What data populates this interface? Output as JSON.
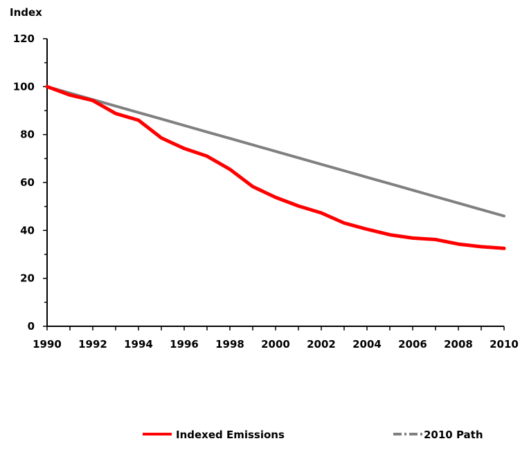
{
  "chart_data": {
    "type": "line",
    "ylabel": "Index",
    "xlabel": "",
    "x": [
      1990,
      1991,
      1992,
      1993,
      1994,
      1995,
      1996,
      1997,
      1998,
      1999,
      2000,
      2001,
      2002,
      2003,
      2004,
      2005,
      2006,
      2007,
      2008,
      2009,
      2010
    ],
    "x_ticks": [
      "1990",
      "1992",
      "1994",
      "1996",
      "1998",
      "2000",
      "2002",
      "2004",
      "2006",
      "2008",
      "2010"
    ],
    "y_ticks": [
      "0",
      "20",
      "40",
      "60",
      "80",
      "100",
      "120"
    ],
    "ylim": [
      0,
      120
    ],
    "xlim": [
      1990,
      2010
    ],
    "series": [
      {
        "name": "Indexed Emissions",
        "color": "#ff0000",
        "style": "solid",
        "values": [
          100,
          96.5,
          94.2,
          88.8,
          86,
          78.6,
          74.2,
          71,
          65.5,
          58.3,
          53.8,
          50.2,
          47.3,
          43.1,
          40.5,
          38.2,
          36.8,
          36.2,
          34.3,
          33.2,
          32.5
        ]
      },
      {
        "name": "2010 Path",
        "color": "#808080",
        "style": "dash-dot",
        "values": [
          100,
          97.3,
          94.6,
          91.9,
          89.2,
          86.5,
          83.8,
          81.1,
          78.4,
          75.7,
          73,
          70.3,
          67.6,
          64.9,
          62.2,
          59.5,
          56.8,
          54.1,
          51.4,
          48.7,
          46
        ]
      }
    ],
    "legend_position": "bottom"
  }
}
